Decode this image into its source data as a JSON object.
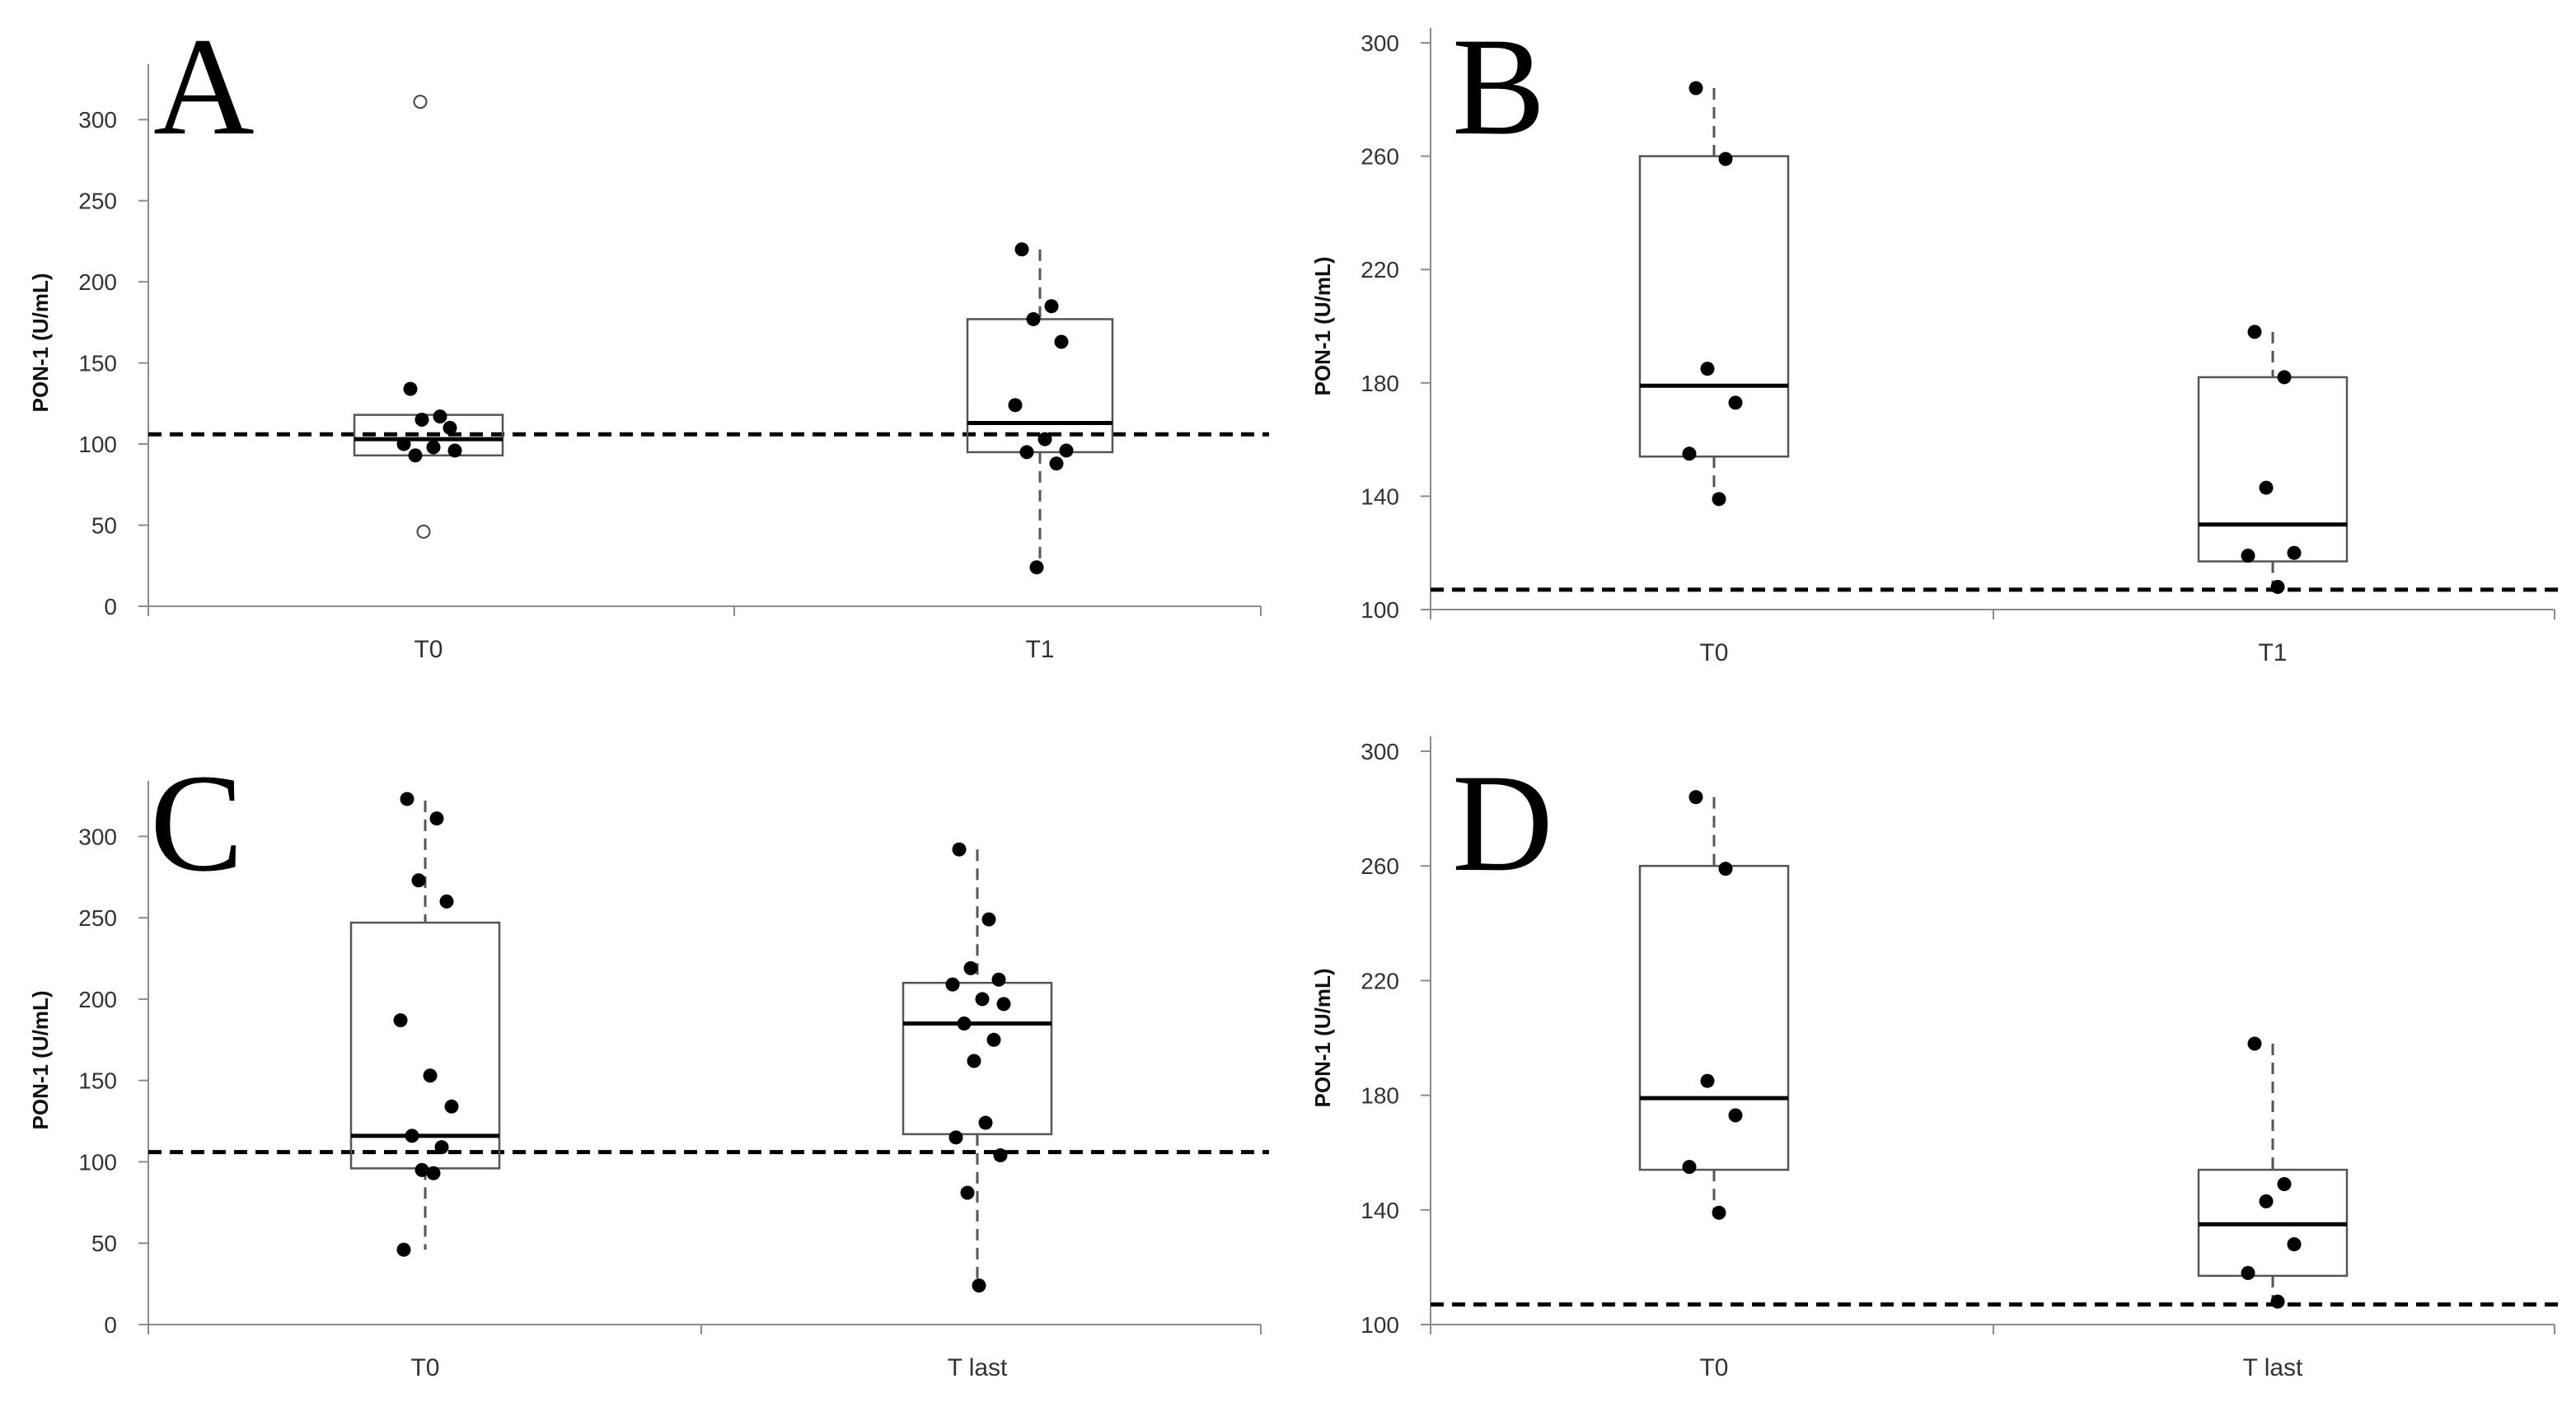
{
  "colors": {
    "ink": "#000000",
    "axis": "#8c8c8c",
    "box": "#555555",
    "text": "#333333"
  },
  "chart_data": [
    {
      "panel": "A",
      "type": "box",
      "ylabel": "PON-1 (U/mL)",
      "ylim": [
        0,
        325
      ],
      "yticks": [
        0,
        50,
        100,
        150,
        200,
        250,
        300
      ],
      "reference_line": 106,
      "categories": [
        "T0",
        "T1"
      ],
      "boxes": [
        {
          "category": "T0",
          "q1": 93,
          "median": 103,
          "q3": 118,
          "whisker_low": null,
          "whisker_high": null,
          "points": [
            134,
            117,
            115,
            110,
            100,
            98,
            96,
            93
          ],
          "outliers": [
            311,
            46
          ]
        },
        {
          "category": "T1",
          "q1": 95,
          "median": 113,
          "q3": 177,
          "whisker_low": 24,
          "whisker_high": 220,
          "points": [
            220,
            185,
            177,
            163,
            124,
            103,
            96,
            95,
            88,
            24
          ],
          "outliers": []
        }
      ]
    },
    {
      "panel": "B",
      "type": "box",
      "ylabel": "PON-1 (U/mL)",
      "ylim": [
        100,
        300
      ],
      "yticks": [
        100,
        140,
        180,
        220,
        260,
        300
      ],
      "reference_line": 107,
      "categories": [
        "T0",
        "T1"
      ],
      "boxes": [
        {
          "category": "T0",
          "q1": 154,
          "median": 179,
          "q3": 260,
          "whisker_low": 139,
          "whisker_high": 284,
          "points": [
            284,
            259,
            185,
            173,
            155,
            139
          ],
          "outliers": []
        },
        {
          "category": "T1",
          "q1": 117,
          "median": 130,
          "q3": 182,
          "whisker_low": 108,
          "whisker_high": 198,
          "points": [
            198,
            182,
            143,
            120,
            119,
            108
          ],
          "outliers": []
        }
      ]
    },
    {
      "panel": "C",
      "type": "box",
      "ylabel": "PON-1 (U/mL)",
      "ylim": [
        0,
        325
      ],
      "yticks": [
        0,
        50,
        100,
        150,
        200,
        250,
        300
      ],
      "reference_line": 106,
      "categories": [
        "T0",
        "T last"
      ],
      "boxes": [
        {
          "category": "T0",
          "q1": 96,
          "median": 116,
          "q3": 247,
          "whisker_low": 46,
          "whisker_high": 322,
          "points": [
            323,
            311,
            273,
            260,
            187,
            153,
            134,
            116,
            109,
            95,
            93,
            46
          ],
          "outliers": []
        },
        {
          "category": "T last",
          "q1": 117,
          "median": 185,
          "q3": 210,
          "whisker_low": 24,
          "whisker_high": 292,
          "points": [
            292,
            249,
            219,
            212,
            209,
            200,
            197,
            185,
            175,
            162,
            124,
            115,
            104,
            81,
            24
          ],
          "outliers": []
        }
      ]
    },
    {
      "panel": "D",
      "type": "box",
      "ylabel": "PON-1 (U/mL)",
      "ylim": [
        100,
        300
      ],
      "yticks": [
        100,
        140,
        180,
        220,
        260,
        300
      ],
      "reference_line": 107,
      "categories": [
        "T0",
        "T last"
      ],
      "boxes": [
        {
          "category": "T0",
          "q1": 154,
          "median": 179,
          "q3": 260,
          "whisker_low": 139,
          "whisker_high": 284,
          "points": [
            284,
            259,
            185,
            173,
            155,
            139
          ],
          "outliers": []
        },
        {
          "category": "T last",
          "q1": 117,
          "median": 135,
          "q3": 154,
          "whisker_low": 108,
          "whisker_high": 198,
          "points": [
            198,
            149,
            143,
            128,
            118,
            108
          ],
          "outliers": []
        }
      ]
    }
  ]
}
